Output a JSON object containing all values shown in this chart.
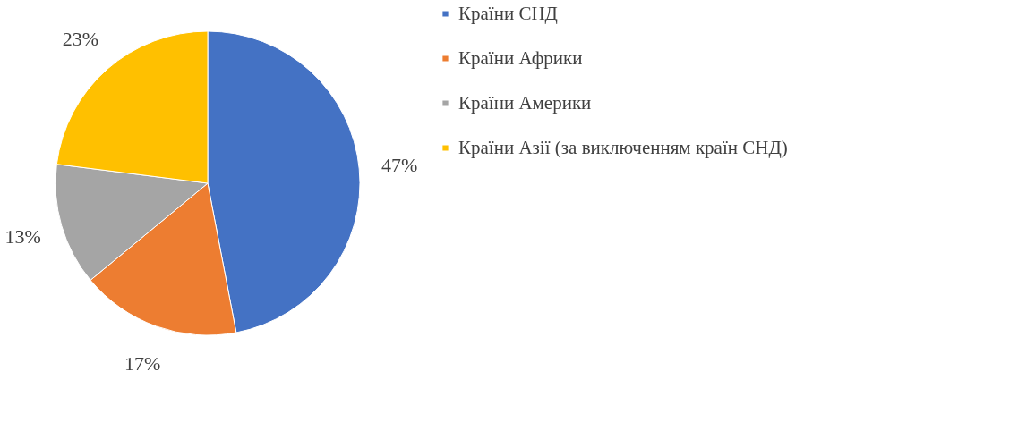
{
  "chart_data": {
    "type": "pie",
    "categories": [
      "Країни СНД",
      "Країни Африки",
      "Країни Америки",
      "Країни Азії (за виключенням країн СНД)"
    ],
    "values": [
      47,
      17,
      13,
      23
    ],
    "colors": [
      "#4472c4",
      "#ed7d31",
      "#a5a5a5",
      "#ffc000"
    ],
    "value_labels": [
      "47%",
      "17%",
      "13%",
      "23%"
    ],
    "legend": "right"
  }
}
